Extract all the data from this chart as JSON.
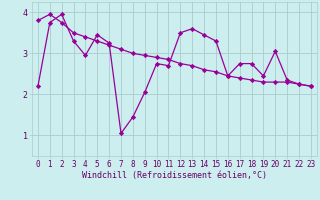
{
  "xlabel": "Windchill (Refroidissement éolien,°C)",
  "x": [
    0,
    1,
    2,
    3,
    4,
    5,
    6,
    7,
    8,
    9,
    10,
    11,
    12,
    13,
    14,
    15,
    16,
    17,
    18,
    19,
    20,
    21,
    22,
    23
  ],
  "line1": [
    2.2,
    3.75,
    3.95,
    3.3,
    2.95,
    3.45,
    3.25,
    1.05,
    1.45,
    2.05,
    2.75,
    2.7,
    3.5,
    3.6,
    3.45,
    3.3,
    2.45,
    2.75,
    2.75,
    2.45,
    3.05,
    2.35,
    2.25,
    2.2
  ],
  "line2": [
    3.8,
    3.95,
    3.75,
    3.5,
    3.4,
    3.3,
    3.2,
    3.1,
    3.0,
    2.95,
    2.9,
    2.85,
    2.75,
    2.7,
    2.6,
    2.55,
    2.45,
    2.4,
    2.35,
    2.3,
    2.3,
    2.3,
    2.25,
    2.2
  ],
  "line_color": "#990099",
  "bg_color": "#cceeee",
  "grid_color": "#aacccc",
  "ylim": [
    0.5,
    4.25
  ],
  "yticks": [
    1,
    2,
    3,
    4
  ],
  "xlim": [
    -0.5,
    23.5
  ],
  "marker": "D",
  "markersize": 2.2,
  "linewidth": 0.9,
  "tick_fontsize": 5.5,
  "xlabel_fontsize": 6.0
}
